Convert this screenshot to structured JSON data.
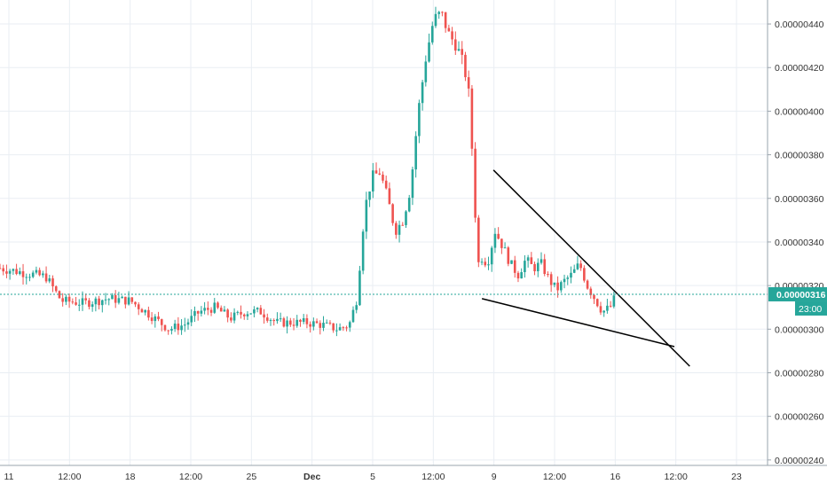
{
  "chart_data": {
    "type": "candlestick",
    "title": "",
    "xlabel": "",
    "ylabel": "",
    "ylim": [
      2.375e-06,
      4.51e-06
    ],
    "grid": true,
    "x_ticks": [
      "11",
      "12:00",
      "18",
      "12:00",
      "25",
      "Dec",
      "5",
      "12:00",
      "9",
      "12:00",
      "16",
      "12:00",
      "23"
    ],
    "y_ticks": [
      "0.00000240",
      "0.00000260",
      "0.00000280",
      "0.00000300",
      "0.00000320",
      "0.00000340",
      "0.00000360",
      "0.00000380",
      "0.00000400",
      "0.00000420",
      "0.00000440"
    ],
    "last_price": {
      "value": 3.16e-06,
      "label": "0.00000316",
      "countdown": "23:00"
    },
    "colors": {
      "up": "#26a69a",
      "down": "#ef5350",
      "grid": "#e9eef3",
      "axis_text": "#333333",
      "trendline": "#000000",
      "price_tag": "#26a69a"
    },
    "trendlines": [
      {
        "name": "upper-trendline",
        "from": {
          "t": 0.6429,
          "p": 3.73e-06
        },
        "to": {
          "t": 0.8986,
          "p": 2.83e-06
        }
      },
      {
        "name": "lower-trendline",
        "from": {
          "t": 0.6279,
          "p": 3.14e-06
        },
        "to": {
          "t": 0.8786,
          "p": 2.92e-06
        }
      }
    ],
    "series": [
      {
        "t": 0.0,
        "p": 3.28e-06
      },
      {
        "t": 0.03,
        "p": 3.26e-06
      },
      {
        "t": 0.06,
        "p": 3.24e-06
      },
      {
        "t": 0.08,
        "p": 3.13e-06
      },
      {
        "t": 0.11,
        "p": 3.12e-06
      },
      {
        "t": 0.14,
        "p": 3.14e-06
      },
      {
        "t": 0.17,
        "p": 3.13e-06
      },
      {
        "t": 0.19,
        "p": 3.08e-06
      },
      {
        "t": 0.22,
        "p": 3e-06
      },
      {
        "t": 0.24,
        "p": 3.02e-06
      },
      {
        "t": 0.26,
        "p": 3.08e-06
      },
      {
        "t": 0.28,
        "p": 3.1e-06
      },
      {
        "t": 0.3,
        "p": 3.05e-06
      },
      {
        "t": 0.32,
        "p": 3.08e-06
      },
      {
        "t": 0.34,
        "p": 3.08e-06
      },
      {
        "t": 0.36,
        "p": 3.03e-06
      },
      {
        "t": 0.38,
        "p": 3.03e-06
      },
      {
        "t": 0.4,
        "p": 3.03e-06
      },
      {
        "t": 0.42,
        "p": 3.02e-06
      },
      {
        "t": 0.44,
        "p": 3e-06
      },
      {
        "t": 0.455,
        "p": 3.02e-06
      },
      {
        "t": 0.465,
        "p": 3.14e-06
      },
      {
        "t": 0.475,
        "p": 3.55e-06
      },
      {
        "t": 0.485,
        "p": 3.7e-06
      },
      {
        "t": 0.495,
        "p": 3.72e-06
      },
      {
        "t": 0.505,
        "p": 3.6e-06
      },
      {
        "t": 0.515,
        "p": 3.45e-06
      },
      {
        "t": 0.525,
        "p": 3.5e-06
      },
      {
        "t": 0.535,
        "p": 3.65e-06
      },
      {
        "t": 0.545,
        "p": 4e-06
      },
      {
        "t": 0.555,
        "p": 4.25e-06
      },
      {
        "t": 0.565,
        "p": 4.42e-06
      },
      {
        "t": 0.575,
        "p": 4.45e-06
      },
      {
        "t": 0.585,
        "p": 4.35e-06
      },
      {
        "t": 0.595,
        "p": 4.3e-06
      },
      {
        "t": 0.605,
        "p": 4.2e-06
      },
      {
        "t": 0.612,
        "p": 4.05e-06
      },
      {
        "t": 0.618,
        "p": 3.6e-06
      },
      {
        "t": 0.623,
        "p": 3.3e-06
      },
      {
        "t": 0.628,
        "p": 3.33e-06
      },
      {
        "t": 0.635,
        "p": 3.3e-06
      },
      {
        "t": 0.645,
        "p": 3.45e-06
      },
      {
        "t": 0.655,
        "p": 3.38e-06
      },
      {
        "t": 0.665,
        "p": 3.3e-06
      },
      {
        "t": 0.675,
        "p": 3.25e-06
      },
      {
        "t": 0.685,
        "p": 3.32e-06
      },
      {
        "t": 0.695,
        "p": 3.28e-06
      },
      {
        "t": 0.705,
        "p": 3.3e-06
      },
      {
        "t": 0.715,
        "p": 3.23e-06
      },
      {
        "t": 0.725,
        "p": 3.18e-06
      },
      {
        "t": 0.735,
        "p": 3.22e-06
      },
      {
        "t": 0.745,
        "p": 3.25e-06
      },
      {
        "t": 0.755,
        "p": 3.3e-06
      },
      {
        "t": 0.765,
        "p": 3.2e-06
      },
      {
        "t": 0.775,
        "p": 3.14e-06
      },
      {
        "t": 0.785,
        "p": 3.08e-06
      },
      {
        "t": 0.795,
        "p": 3.1e-06
      },
      {
        "t": 0.803,
        "p": 3.16e-06
      }
    ]
  }
}
